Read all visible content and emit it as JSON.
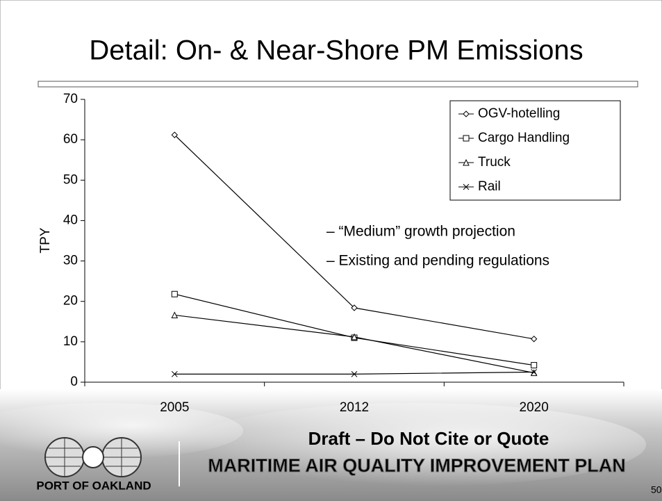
{
  "chart_data": {
    "type": "line",
    "title": "Detail: On- & Near-Shore PM Emissions",
    "y_label": "TPY",
    "categories": [
      "2005",
      "2012",
      "2020"
    ],
    "series": [
      {
        "name": "OGV-hotelling",
        "color": "#000000",
        "marker": "diamond",
        "values": [
          61.2,
          18.4,
          10.7
        ]
      },
      {
        "name": "Cargo Handling",
        "color": "#000000",
        "marker": "square",
        "values": [
          21.8,
          11,
          4.2
        ]
      },
      {
        "name": "Truck",
        "color": "#000000",
        "marker": "triangle",
        "values": [
          16.6,
          11.2,
          2.3
        ]
      },
      {
        "name": "Rail",
        "color": "#000000",
        "marker": "x",
        "values": [
          2,
          2,
          2.5
        ]
      }
    ],
    "ylim": [
      0,
      70
    ],
    "yticks": [
      0,
      10,
      20,
      30,
      40,
      50,
      60,
      70
    ],
    "legend": "top-right",
    "annotations": [
      "–  “Medium” growth projection",
      "–  Existing and pending regulations"
    ],
    "footer": {
      "draft": "Draft – Do Not Cite or Quote",
      "plan": "MARITIME AIR QUALITY IMPROVEMENT PLAN",
      "logo": "PORT OF OAKLAND",
      "page": "50"
    }
  }
}
